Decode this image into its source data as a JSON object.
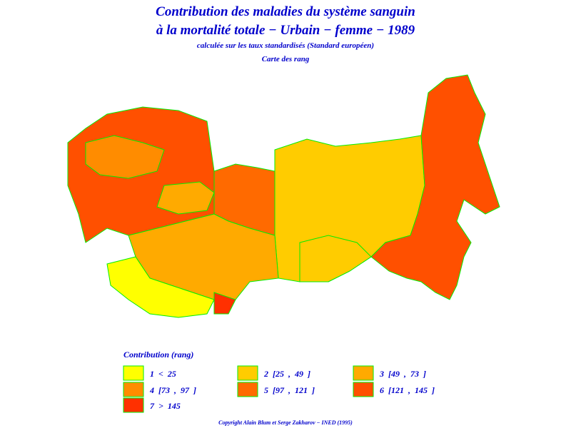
{
  "title": {
    "line1": "Contribution des maladies du système sanguin",
    "line2": "à la mortalité totale − Urbain − femme − 1989",
    "subtitle": "calculée sur les taux standardisés (Standard européen)",
    "map_caption": "Carte des rang"
  },
  "legend": {
    "title": "Contribution (rang)",
    "items": [
      {
        "label": "1  <  25",
        "color": "#ffff00"
      },
      {
        "label": "2  [25  ,  49  ]",
        "color": "#ffcc00"
      },
      {
        "label": "3  [49  ,  73  ]",
        "color": "#ffaa00"
      },
      {
        "label": "4  [73  ,  97  ]",
        "color": "#ff8c00"
      },
      {
        "label": "5  [97  ,  121  ]",
        "color": "#ff6a00"
      },
      {
        "label": "6  [121  ,  145  ]",
        "color": "#ff5000"
      },
      {
        "label": "7  >  145",
        "color": "#ff3000"
      }
    ]
  },
  "footer": "Copyright Alain Blum et Serge Zakharov − INED (1995)"
}
